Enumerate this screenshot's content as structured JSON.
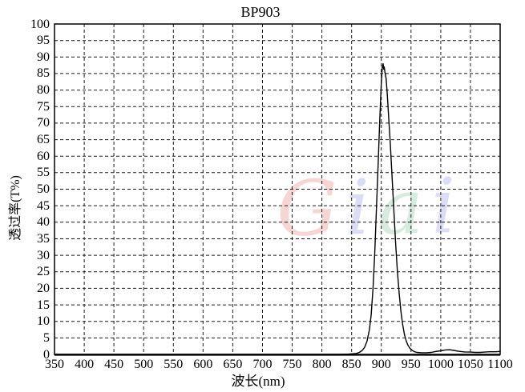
{
  "chart_data": {
    "type": "line",
    "title": "BP903",
    "xlabel": "波长(nm)",
    "ylabel": "透过率(T%)",
    "xlim": [
      350,
      1100
    ],
    "ylim": [
      0,
      100
    ],
    "x_ticks": [
      350,
      400,
      450,
      500,
      550,
      600,
      650,
      700,
      750,
      800,
      850,
      900,
      950,
      1000,
      1050,
      1100
    ],
    "y_ticks": [
      0,
      5,
      10,
      15,
      20,
      25,
      30,
      35,
      40,
      45,
      50,
      55,
      60,
      65,
      70,
      75,
      80,
      85,
      90,
      95,
      100
    ],
    "grid": "dashed",
    "legend": "none",
    "line_color": "#000000",
    "series": [
      {
        "name": "BP903 transmittance",
        "color": "#000000",
        "points": [
          [
            350,
            0
          ],
          [
            400,
            0
          ],
          [
            450,
            0
          ],
          [
            500,
            0
          ],
          [
            550,
            0
          ],
          [
            600,
            0
          ],
          [
            650,
            0
          ],
          [
            700,
            0
          ],
          [
            750,
            0
          ],
          [
            800,
            0
          ],
          [
            830,
            0
          ],
          [
            845,
            0.1
          ],
          [
            852,
            0.2
          ],
          [
            858,
            0.3
          ],
          [
            863,
            0.6
          ],
          [
            868,
            1.2
          ],
          [
            872,
            2.2
          ],
          [
            876,
            4
          ],
          [
            880,
            7.5
          ],
          [
            883,
            12
          ],
          [
            886,
            20
          ],
          [
            889,
            31
          ],
          [
            892,
            45
          ],
          [
            895,
            59
          ],
          [
            897,
            69
          ],
          [
            899,
            78
          ],
          [
            900,
            82
          ],
          [
            901,
            85.5
          ],
          [
            902,
            87.3
          ],
          [
            903,
            88
          ],
          [
            904,
            86.3
          ],
          [
            905,
            87
          ],
          [
            906,
            85.5
          ],
          [
            908,
            83.5
          ],
          [
            910,
            79
          ],
          [
            912,
            73
          ],
          [
            915,
            64
          ],
          [
            918,
            54
          ],
          [
            921,
            44
          ],
          [
            924,
            34
          ],
          [
            927,
            25.5
          ],
          [
            930,
            18.5
          ],
          [
            933,
            13
          ],
          [
            936,
            9
          ],
          [
            939,
            6
          ],
          [
            942,
            4
          ],
          [
            945,
            2.7
          ],
          [
            948,
            1.9
          ],
          [
            952,
            1.2
          ],
          [
            956,
            0.8
          ],
          [
            960,
            0.6
          ],
          [
            968,
            0.5
          ],
          [
            976,
            0.5
          ],
          [
            984,
            0.6
          ],
          [
            992,
            0.9
          ],
          [
            1000,
            1.1
          ],
          [
            1008,
            1.35
          ],
          [
            1015,
            1.4
          ],
          [
            1022,
            1.2
          ],
          [
            1030,
            0.95
          ],
          [
            1040,
            0.75
          ],
          [
            1050,
            0.7
          ],
          [
            1058,
            0.6
          ],
          [
            1066,
            0.6
          ],
          [
            1074,
            0.7
          ],
          [
            1082,
            0.8
          ],
          [
            1092,
            0.8
          ],
          [
            1100,
            0.9
          ]
        ]
      }
    ]
  },
  "watermark": {
    "text": "Giai",
    "opacity": 0.55,
    "letters": [
      {
        "char": "G",
        "color": "#f2b3b3"
      },
      {
        "char": "i",
        "color": "#bcc2ec"
      },
      {
        "char": "a",
        "color": "#b5dbc2"
      },
      {
        "char": "i",
        "color": "#bcc2ec"
      }
    ]
  },
  "colors": {
    "background": "#ffffff",
    "axis": "#000000",
    "grid": "#1a1a1a",
    "text": "#000000"
  }
}
